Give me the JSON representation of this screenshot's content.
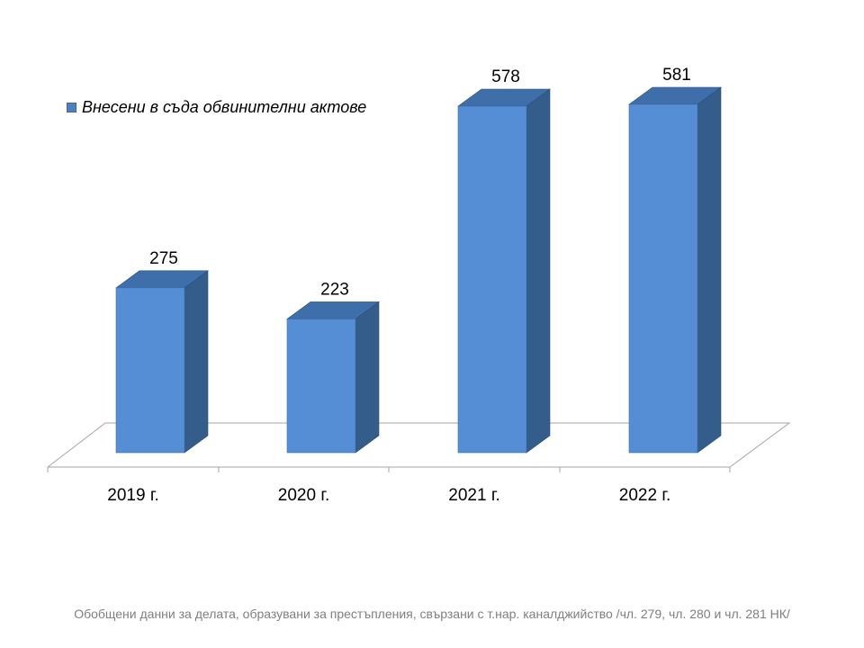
{
  "chart_data": {
    "type": "bar",
    "style": "3d-column",
    "categories": [
      "2019 г.",
      "2020 г.",
      "2021 г.",
      "2022 г."
    ],
    "series": [
      {
        "name": "Внесени в съда обвинителни актове",
        "values": [
          275,
          223,
          578,
          581
        ]
      }
    ],
    "data_labels": [
      "275",
      "223",
      "578",
      "581"
    ],
    "ylim": [
      0,
      581
    ],
    "grid": false,
    "legend_position": "top-left",
    "colors": {
      "front": "#558ed5",
      "side": "#355d8c",
      "top": "#3f6faa",
      "floor_line": "#a6a6a6"
    }
  },
  "footnote": "Обобщени данни за делата, образувани за престъпления, свързани с т.нар. каналджийство /чл. 279, чл. 280 и чл. 281 НК/"
}
